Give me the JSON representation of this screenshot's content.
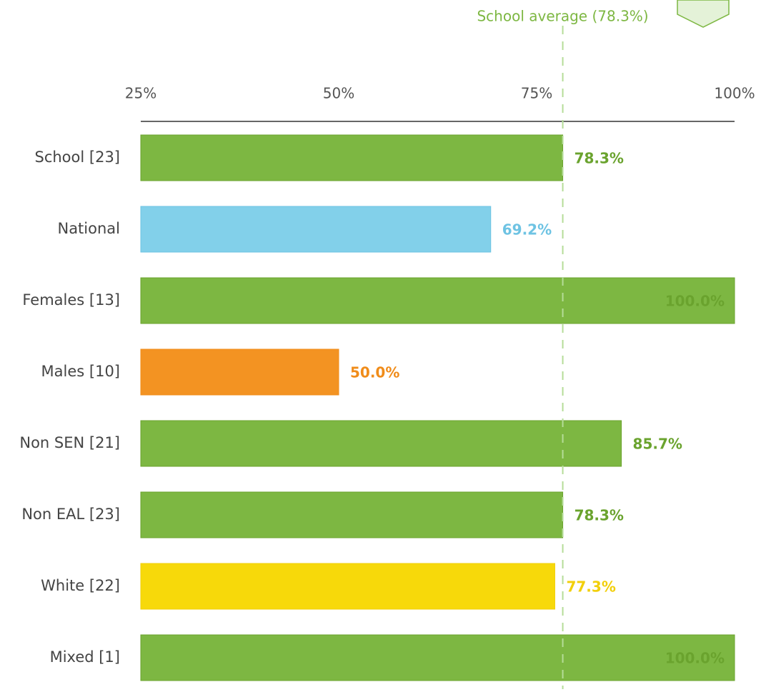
{
  "chart_data": {
    "type": "bar",
    "orientation": "horizontal",
    "categories": [
      "School [23]",
      "National",
      "Females [13]",
      "Males [10]",
      "Non SEN [21]",
      "Non EAL [23]",
      "White [22]",
      "Mixed [1]"
    ],
    "values": [
      78.3,
      69.2,
      100.0,
      50.0,
      85.7,
      78.3,
      77.3,
      100.0
    ],
    "value_labels": [
      "78.3%",
      "69.2%",
      "100.0%",
      "50.0%",
      "85.7%",
      "78.3%",
      "77.3%",
      "100.0%"
    ],
    "colors": [
      "#7db742",
      "#82d0ea",
      "#7db742",
      "#f39322",
      "#7db742",
      "#7db742",
      "#f7d90a",
      "#7db742"
    ],
    "label_colors": [
      "#6aa32e",
      "#6ec3e3",
      "#6aa32e",
      "#f08c1a",
      "#6aa32e",
      "#6aa32e",
      "#f2cf0a",
      "#6aa32e"
    ],
    "xlim": [
      25,
      100
    ],
    "xticks": [
      {
        "value": 25,
        "label": "25%"
      },
      {
        "value": 50,
        "label": "50%"
      },
      {
        "value": 75,
        "label": "75%"
      },
      {
        "value": 100,
        "label": "100%"
      }
    ],
    "reference": {
      "value": 78.3,
      "label": "School average (78.3%)",
      "color": "#7db742"
    }
  }
}
